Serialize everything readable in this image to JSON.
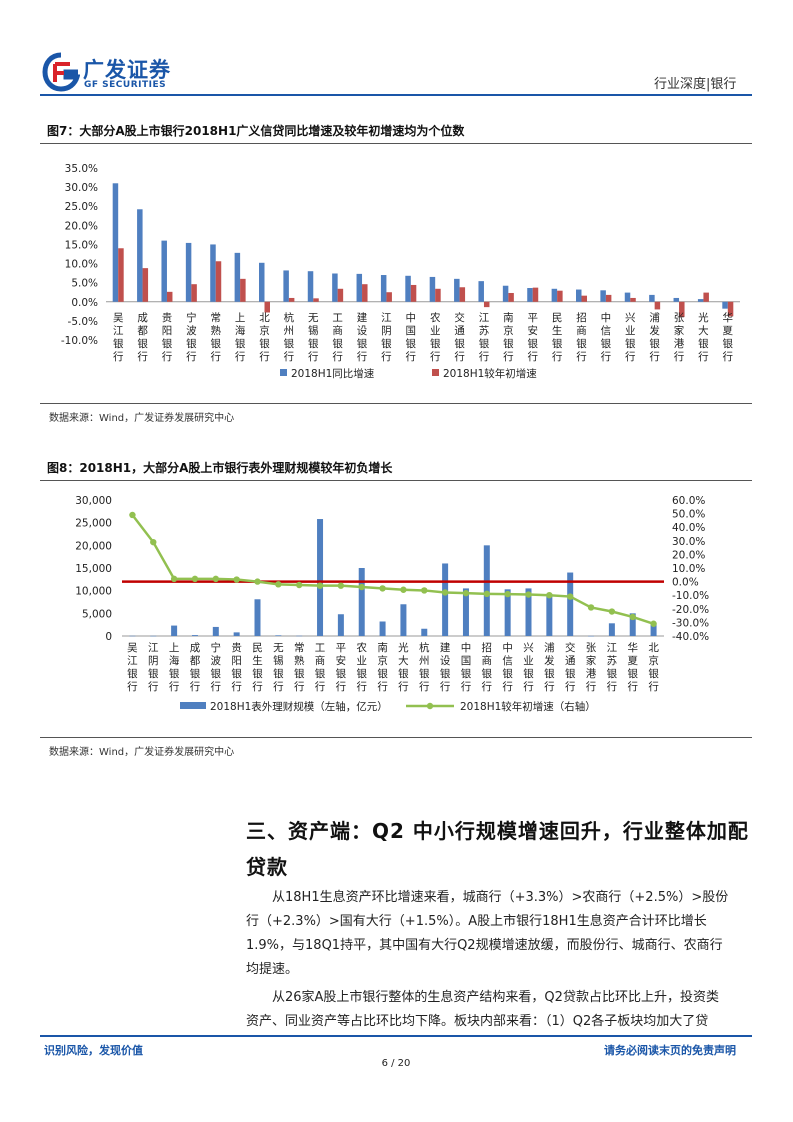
{
  "header": {
    "company_cn": "广发证券",
    "company_en": "GF SECURITIES",
    "category": "行业深度|银行"
  },
  "figure7": {
    "title": "图7：大部分A股上市银行2018H1广义信贷同比增速及较年初增速均为个位数",
    "source": "数据来源：Wind，广发证券发展研究中心",
    "chart_data": {
      "type": "bar",
      "categories": [
        "吴江银行",
        "成都银行",
        "贵阳银行",
        "宁波银行",
        "常熟银行",
        "上海银行",
        "北京银行",
        "杭州银行",
        "无锡银行",
        "工商银行",
        "建设银行",
        "江阴银行",
        "中国银行",
        "农业银行",
        "交通银行",
        "江苏银行",
        "南京银行",
        "平安银行",
        "民生银行",
        "招商银行",
        "中信银行",
        "兴业银行",
        "浦发银行",
        "张家港行",
        "光大银行",
        "华夏银行"
      ],
      "series": [
        {
          "name": "2018H1同比增速",
          "color": "#4f7fc0",
          "values": [
            31.0,
            24.2,
            16.0,
            15.4,
            15.0,
            12.8,
            10.2,
            8.2,
            8.0,
            7.4,
            7.3,
            7.0,
            6.8,
            6.5,
            6.0,
            5.4,
            4.2,
            3.6,
            3.4,
            3.2,
            3.0,
            2.4,
            1.8,
            1.0,
            0.7,
            -1.8
          ]
        },
        {
          "name": "2018H1较年初增速",
          "color": "#c0504d",
          "values": [
            14.0,
            8.8,
            2.6,
            4.6,
            10.6,
            6.0,
            -2.8,
            1.0,
            0.9,
            3.4,
            4.6,
            2.5,
            4.4,
            3.4,
            3.8,
            -1.4,
            2.3,
            3.7,
            2.9,
            1.6,
            1.8,
            1.0,
            -2.0,
            -4.0,
            2.4,
            -3.8
          ]
        }
      ],
      "y_ticks": [
        "35.0%",
        "30.0%",
        "25.0%",
        "20.0%",
        "15.0%",
        "10.0%",
        "5.0%",
        "0.0%",
        "-5.0%",
        "-10.0%"
      ],
      "ylim": [
        -10,
        35
      ],
      "legend": "bottom"
    }
  },
  "figure8": {
    "title": "图8：2018H1，大部分A股上市银行表外理财规模较年初负增长",
    "source": "数据来源：Wind，广发证券发展研究中心",
    "chart_data": {
      "type": "bar",
      "categories": [
        "吴江银行",
        "江阴银行",
        "上海银行",
        "成都银行",
        "宁波银行",
        "贵阳银行",
        "民生银行",
        "无锡银行",
        "常熟银行",
        "工商银行",
        "平安银行",
        "农业银行",
        "南京银行",
        "光大银行",
        "杭州银行",
        "建设银行",
        "中国银行",
        "招商银行",
        "中信银行",
        "兴业银行",
        "浦发银行",
        "交通银行",
        "张家港行",
        "江苏银行",
        "华夏银行",
        "北京银行"
      ],
      "series": [
        {
          "name": "2018H1表外理财规模（左轴，亿元）",
          "type": "bar",
          "axis": "left",
          "color": "#4f7fc0",
          "values": [
            50,
            40,
            2300,
            200,
            2000,
            800,
            8100,
            150,
            60,
            25800,
            4800,
            15000,
            3200,
            7000,
            1600,
            16000,
            10500,
            20000,
            10300,
            10500,
            9300,
            14000,
            30,
            2800,
            5000,
            2800
          ]
        },
        {
          "name": "2018H1较年初增速（右轴）",
          "type": "line",
          "axis": "right",
          "color": "#92c050",
          "values": [
            49.0,
            29.0,
            2.0,
            2.0,
            2.0,
            1.5,
            0.0,
            -2.0,
            -2.5,
            -3.0,
            -3.0,
            -4.0,
            -5.0,
            -6.0,
            -6.5,
            -8.0,
            -8.5,
            -9.0,
            -9.2,
            -9.5,
            -10.0,
            -11.0,
            -19.0,
            -22.0,
            -26.0,
            -31.0
          ]
        }
      ],
      "y_left_ticks": [
        "30,000",
        "25,000",
        "20,000",
        "15,000",
        "10,000",
        "5,000",
        "0"
      ],
      "y_right_ticks": [
        "60.0%",
        "50.0%",
        "40.0%",
        "30.0%",
        "20.0%",
        "10.0%",
        "0.0%",
        "-10.0%",
        "-20.0%",
        "-30.0%",
        "-40.0%"
      ],
      "ylim_left": [
        0,
        30000
      ],
      "ylim_right": [
        -40,
        60
      ],
      "reference_line": {
        "value": 0,
        "axis": "right",
        "color": "#c00000"
      },
      "legend": "bottom"
    }
  },
  "section": {
    "heading_line1": "三、资产端：Q2 中小行规模增速回升，行业整体加配",
    "heading_line2": "贷款",
    "para1_lines": [
      "从18H1生息资产环比增速来看，城商行（+3.3%）>农商行（+2.5%）>股份",
      "行（+2.3%）>国有大行（+1.5%）。A股上市银行18H1生息资产合计环比增长",
      "1.9%，与18Q1持平，其中国有大行Q2规模增速放缓，而股份行、城商行、农商行",
      "均提速。"
    ],
    "para2_lines": [
      "从26家A股上市银行整体的生息资产结构来看，Q2贷款占比环比上升，投资类",
      "资产、同业资产等占比环比均下降。板块内部来看：（1）Q2各子板块均加大了贷"
    ]
  },
  "footer": {
    "left": "识别风险，发现价值",
    "page": "6 / 20",
    "right": "请务必阅读末页的免责声明"
  }
}
